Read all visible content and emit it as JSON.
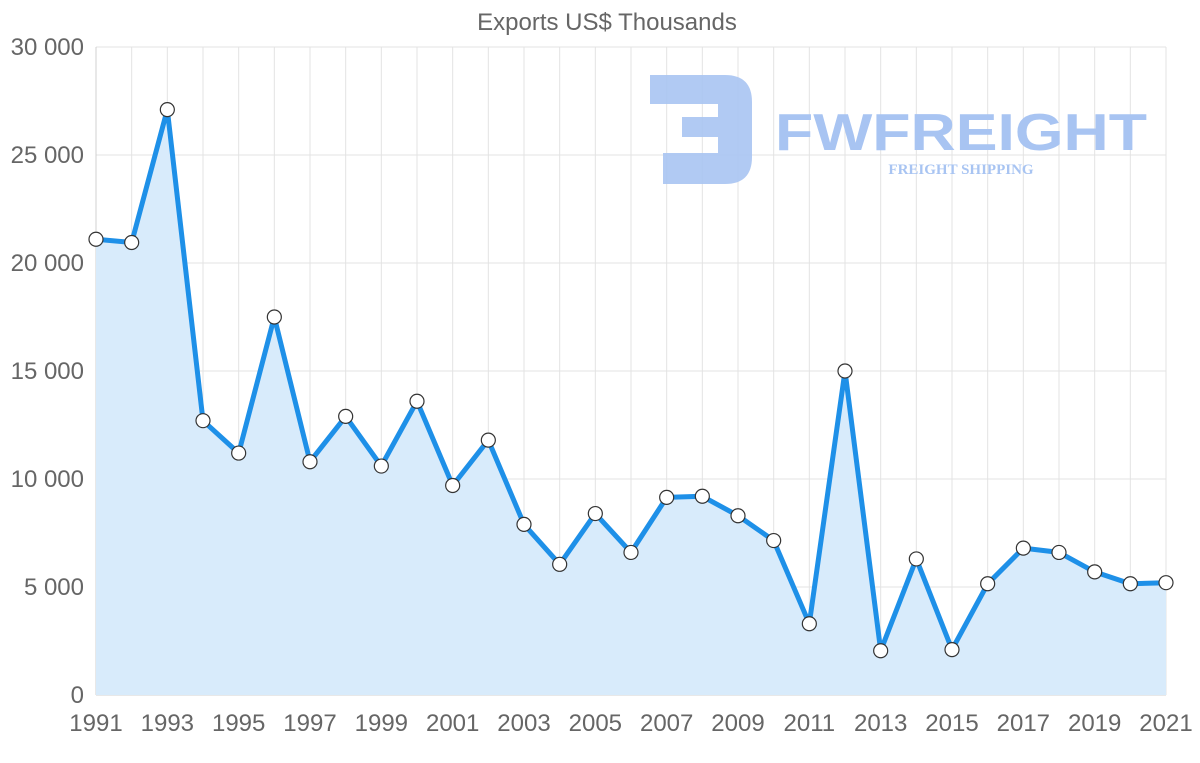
{
  "chart_data": {
    "type": "line",
    "title": "Exports US$ Thousands",
    "xlabel": "",
    "ylabel": "",
    "ylim": [
      0,
      30000
    ],
    "grid": true,
    "filled": true,
    "y_ticks": [
      0,
      5000,
      10000,
      15000,
      20000,
      25000,
      30000
    ],
    "y_tick_labels": [
      "0",
      "5 000",
      "10 000",
      "15 000",
      "20 000",
      "25 000",
      "30 000"
    ],
    "x_tick_labels": [
      "1991",
      "1993",
      "1995",
      "1997",
      "1999",
      "2001",
      "2003",
      "2005",
      "2007",
      "2009",
      "2011",
      "2013",
      "2015",
      "2017",
      "2019",
      "2021"
    ],
    "series": [
      {
        "name": "Exports",
        "color": "#1E90E8",
        "fill": "#D8EBFB",
        "x": [
          1991,
          1992,
          1993,
          1994,
          1995,
          1996,
          1997,
          1998,
          1999,
          2000,
          2001,
          2002,
          2003,
          2004,
          2005,
          2006,
          2007,
          2008,
          2009,
          2010,
          2011,
          2012,
          2013,
          2014,
          2015,
          2016,
          2017,
          2018,
          2019,
          2020,
          2021
        ],
        "values": [
          21100,
          20950,
          27100,
          12700,
          11200,
          17500,
          10800,
          12900,
          10600,
          13600,
          9700,
          11800,
          7900,
          6050,
          8400,
          6600,
          9150,
          9200,
          8300,
          7150,
          3300,
          15000,
          2050,
          6300,
          2100,
          5150,
          6800,
          6600,
          5700,
          5150,
          5200
        ]
      }
    ]
  },
  "watermark": {
    "brand": "FWFREIGHT",
    "tagline": "FREIGHT SHIPPING",
    "color": "#A8C4F2"
  }
}
